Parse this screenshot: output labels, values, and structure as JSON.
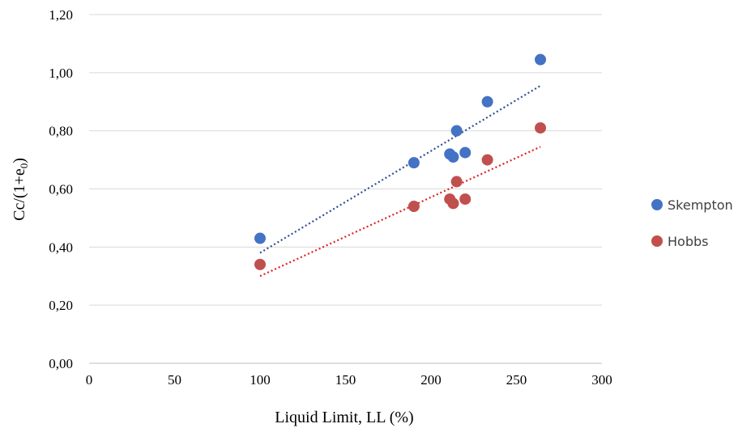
{
  "chart_data": {
    "type": "scatter",
    "title": "",
    "xlabel": "Liquid Limit, LL (%)",
    "ylabel": {
      "base": "Cc/(1+e",
      "sub": "0",
      "end": ")"
    },
    "xlim": [
      0,
      300
    ],
    "ylim": [
      0,
      1.2
    ],
    "x_ticks": [
      0,
      50,
      100,
      150,
      200,
      250,
      300
    ],
    "x_tick_labels": [
      "0",
      "50",
      "100",
      "150",
      "200",
      "250",
      "300"
    ],
    "y_ticks": [
      0,
      0.2,
      0.4,
      0.6,
      0.8,
      1.0,
      1.2
    ],
    "y_tick_labels": [
      "0,00",
      "0,20",
      "0,40",
      "0,60",
      "0,80",
      "1,00",
      "1,20"
    ],
    "grid": "horizontal",
    "legend_position": "right",
    "series": [
      {
        "name": "Skempton",
        "color": "#4472c4",
        "trendline_color": "#2f4f8f",
        "x": [
          100,
          190,
          211,
          213,
          215,
          220,
          233,
          264
        ],
        "y": [
          0.43,
          0.69,
          0.72,
          0.71,
          0.8,
          0.725,
          0.9,
          1.045
        ],
        "trendline": {
          "x": [
            100,
            264
          ],
          "y": [
            0.38,
            0.955
          ]
        }
      },
      {
        "name": "Hobbs",
        "color": "#c0504d",
        "trendline_color": "#e02020",
        "x": [
          100,
          190,
          211,
          213,
          215,
          220,
          233,
          264
        ],
        "y": [
          0.34,
          0.54,
          0.565,
          0.55,
          0.625,
          0.565,
          0.7,
          0.81
        ],
        "trendline": {
          "x": [
            100,
            264
          ],
          "y": [
            0.3,
            0.745
          ]
        }
      }
    ]
  }
}
